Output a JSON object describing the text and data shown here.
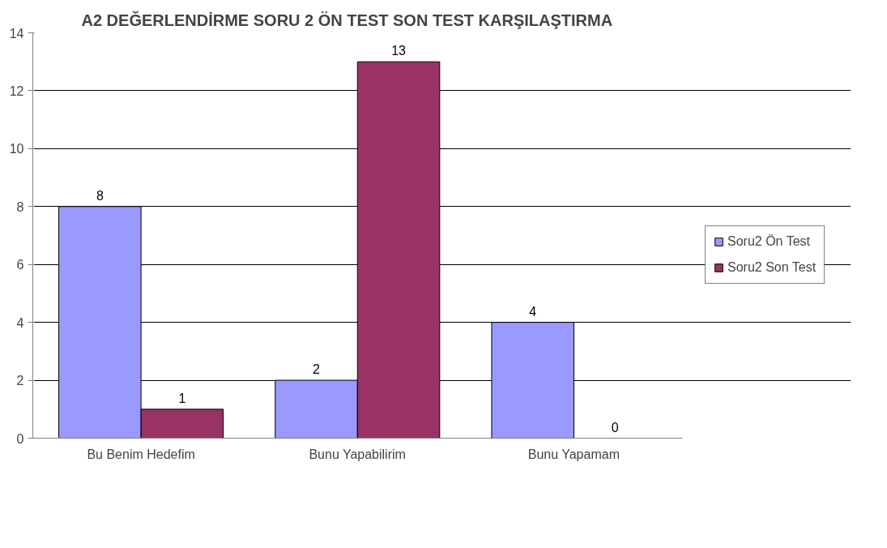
{
  "chart_data": {
    "type": "bar",
    "title": "A2 DEĞERLENDİRME SORU 2 ÖN TEST SON TEST KARŞILAŞTIRMA",
    "categories": [
      "Bu Benim Hedefim",
      "Bunu Yapabilirim",
      "Bunu Yapamam"
    ],
    "series": [
      {
        "name": "Soru2 Ön Test",
        "color": "#9999ff",
        "values": [
          8,
          2,
          4
        ]
      },
      {
        "name": "Soru2 Son Test",
        "color": "#993366",
        "values": [
          1,
          13,
          0
        ]
      }
    ],
    "ylim": [
      0,
      14
    ],
    "yticks": [
      0,
      2,
      4,
      6,
      8,
      10,
      12,
      14
    ],
    "grid": "y",
    "legend": "right",
    "data_labels": true
  }
}
